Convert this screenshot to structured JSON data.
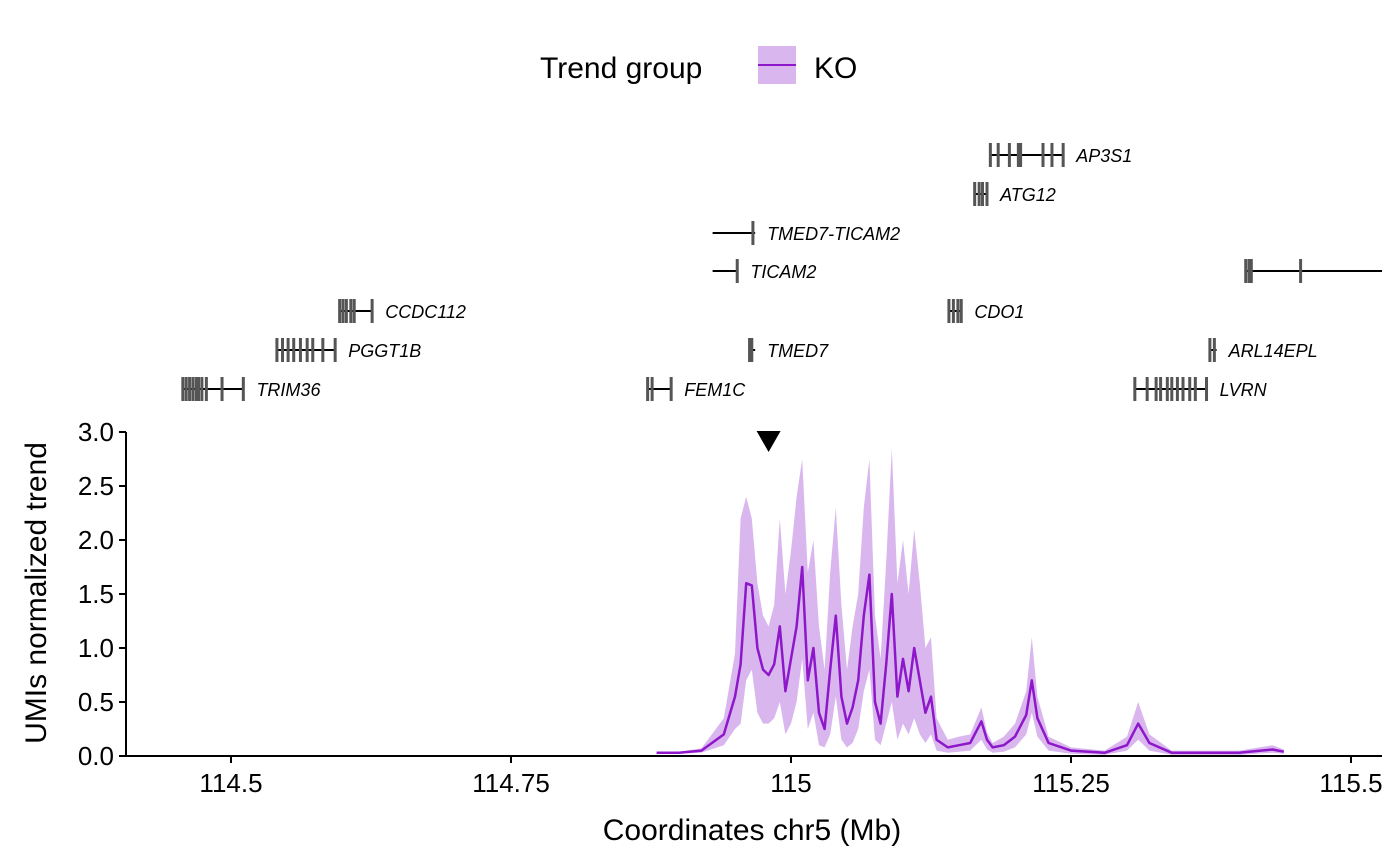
{
  "legend": {
    "title": "Trend group",
    "entries": [
      {
        "label": "KO",
        "line_color": "#8E17C9",
        "fill_color": "#D9B7EE"
      }
    ]
  },
  "colors": {
    "trend_line": "#8E17C9",
    "ribbon": "#D9B7EE",
    "gene_exon": "#555555",
    "gene_line": "#000000",
    "axis": "#000000"
  },
  "marker": {
    "icon": "triangle-down-icon",
    "x": 114.98
  },
  "chart_data": {
    "type": "area",
    "title": "",
    "xlabel": "Coordinates chr5 (Mb)",
    "ylabel": "UMIs normalized trend",
    "xlim": [
      114.42,
      115.535
    ],
    "ylim": [
      0,
      3.0
    ],
    "x_ticks": [
      114.5,
      114.75,
      115,
      115.25,
      115.5
    ],
    "x_tick_labels": [
      "114.5",
      "114.75",
      "115",
      "115.25",
      "115.5"
    ],
    "y_ticks": [
      0,
      0.5,
      1.0,
      1.5,
      2.0,
      2.5,
      3.0
    ],
    "y_tick_labels": [
      "0.0",
      "0.5",
      "1.0",
      "1.5",
      "2.0",
      "2.5",
      "3.0"
    ],
    "grid": false,
    "legend_position": "top",
    "series": [
      {
        "name": "KO",
        "x": [
          114.88,
          114.9,
          114.92,
          114.94,
          114.95,
          114.955,
          114.96,
          114.965,
          114.97,
          114.975,
          114.98,
          114.985,
          114.99,
          114.995,
          115.0,
          115.005,
          115.01,
          115.015,
          115.02,
          115.025,
          115.03,
          115.035,
          115.04,
          115.045,
          115.05,
          115.055,
          115.06,
          115.065,
          115.07,
          115.075,
          115.08,
          115.085,
          115.09,
          115.095,
          115.1,
          115.105,
          115.11,
          115.115,
          115.12,
          115.125,
          115.13,
          115.14,
          115.15,
          115.16,
          115.17,
          115.175,
          115.18,
          115.19,
          115.2,
          115.21,
          115.215,
          115.22,
          115.23,
          115.25,
          115.28,
          115.3,
          115.31,
          115.32,
          115.34,
          115.37,
          115.4,
          115.43,
          115.44
        ],
        "y": [
          0.03,
          0.03,
          0.05,
          0.2,
          0.55,
          0.85,
          1.6,
          1.58,
          1.0,
          0.8,
          0.75,
          0.85,
          1.2,
          0.6,
          0.9,
          1.2,
          1.75,
          0.7,
          1.0,
          0.4,
          0.25,
          0.8,
          1.3,
          0.55,
          0.3,
          0.45,
          0.7,
          1.3,
          1.68,
          0.5,
          0.3,
          0.85,
          1.5,
          0.55,
          0.9,
          0.6,
          1.0,
          0.7,
          0.4,
          0.55,
          0.15,
          0.08,
          0.1,
          0.12,
          0.32,
          0.15,
          0.08,
          0.1,
          0.18,
          0.38,
          0.7,
          0.35,
          0.12,
          0.05,
          0.03,
          0.1,
          0.3,
          0.12,
          0.03,
          0.03,
          0.03,
          0.06,
          0.04
        ],
        "upper": [
          0.04,
          0.04,
          0.07,
          0.35,
          0.95,
          2.2,
          2.4,
          2.2,
          1.6,
          1.3,
          1.2,
          1.4,
          2.2,
          1.5,
          1.9,
          2.4,
          2.75,
          1.7,
          2.0,
          1.2,
          0.8,
          1.7,
          2.3,
          1.4,
          0.8,
          1.2,
          1.5,
          2.3,
          2.75,
          1.3,
          0.9,
          1.8,
          2.85,
          1.6,
          2.0,
          1.5,
          2.1,
          1.6,
          1.0,
          1.1,
          0.35,
          0.15,
          0.18,
          0.2,
          0.45,
          0.22,
          0.12,
          0.18,
          0.3,
          0.6,
          1.1,
          0.55,
          0.18,
          0.08,
          0.05,
          0.18,
          0.5,
          0.2,
          0.05,
          0.05,
          0.05,
          0.1,
          0.06
        ],
        "lower": [
          0.02,
          0.02,
          0.03,
          0.1,
          0.25,
          0.3,
          0.7,
          0.8,
          0.4,
          0.3,
          0.3,
          0.35,
          0.5,
          0.2,
          0.3,
          0.5,
          0.9,
          0.25,
          0.4,
          0.1,
          0.08,
          0.2,
          0.55,
          0.15,
          0.08,
          0.12,
          0.25,
          0.6,
          0.8,
          0.15,
          0.1,
          0.3,
          0.5,
          0.15,
          0.3,
          0.2,
          0.35,
          0.2,
          0.12,
          0.2,
          0.05,
          0.03,
          0.04,
          0.05,
          0.15,
          0.06,
          0.03,
          0.04,
          0.08,
          0.2,
          0.4,
          0.18,
          0.05,
          0.02,
          0.01,
          0.05,
          0.15,
          0.05,
          0.01,
          0.01,
          0.01,
          0.03,
          0.02
        ]
      }
    ]
  },
  "genes": [
    {
      "name": "AP3S1",
      "row": 0,
      "start": 115.177,
      "end": 115.244,
      "exons": [
        115.178,
        115.185,
        115.195,
        115.203,
        115.205,
        115.225,
        115.233,
        115.243
      ],
      "label_side": "right"
    },
    {
      "name": "ATG12",
      "row": 1,
      "start": 115.163,
      "end": 115.176,
      "exons": [
        115.164,
        115.168,
        115.171,
        115.175
      ],
      "label_side": "right"
    },
    {
      "name": "TMED7-TICAM2",
      "row": 2,
      "start": 114.93,
      "end": 114.968,
      "exons": [
        114.966
      ],
      "label_side": "right"
    },
    {
      "name": "TICAM2",
      "row": 3,
      "start": 114.93,
      "end": 114.953,
      "exons": [
        114.952
      ],
      "label_side": "right"
    },
    {
      "name": "",
      "row": 3,
      "start": 115.405,
      "end": 115.535,
      "exons": [
        115.406,
        115.409,
        115.411,
        115.455
      ],
      "label_side": "none"
    },
    {
      "name": "CDO1",
      "row": 4,
      "start": 115.14,
      "end": 115.153,
      "exons": [
        115.141,
        115.145,
        115.149,
        115.152
      ],
      "label_side": "right"
    },
    {
      "name": "CCDC112",
      "row": 4,
      "start": 114.596,
      "end": 114.627,
      "exons": [
        114.597,
        114.6,
        114.603,
        114.607,
        114.61,
        114.626
      ],
      "label_side": "right"
    },
    {
      "name": "PGGT1B",
      "row": 5,
      "start": 114.54,
      "end": 114.594,
      "exons": [
        114.541,
        114.546,
        114.551,
        114.556,
        114.562,
        114.568,
        114.573,
        114.582,
        114.593
      ],
      "label_side": "right"
    },
    {
      "name": "TMED7",
      "row": 5,
      "start": 114.962,
      "end": 114.968,
      "exons": [
        114.963,
        114.965
      ],
      "label_side": "right"
    },
    {
      "name": "ARL14EPL",
      "row": 5,
      "start": 115.373,
      "end": 115.38,
      "exons": [
        115.374,
        115.378
      ],
      "label_side": "right"
    },
    {
      "name": "TRIM36",
      "row": 6,
      "start": 114.456,
      "end": 114.512,
      "exons": [
        114.457,
        114.46,
        114.463,
        114.466,
        114.469,
        114.471,
        114.474,
        114.478,
        114.492,
        114.511
      ],
      "label_side": "right"
    },
    {
      "name": "FEM1C",
      "row": 6,
      "start": 114.871,
      "end": 114.894,
      "exons": [
        114.872,
        114.876,
        114.893
      ],
      "label_side": "right"
    },
    {
      "name": "LVRN",
      "row": 6,
      "start": 115.306,
      "end": 115.372,
      "exons": [
        115.307,
        115.318,
        115.326,
        115.33,
        115.336,
        115.34,
        115.345,
        115.35,
        115.356,
        115.361,
        115.371
      ],
      "label_side": "right"
    }
  ]
}
